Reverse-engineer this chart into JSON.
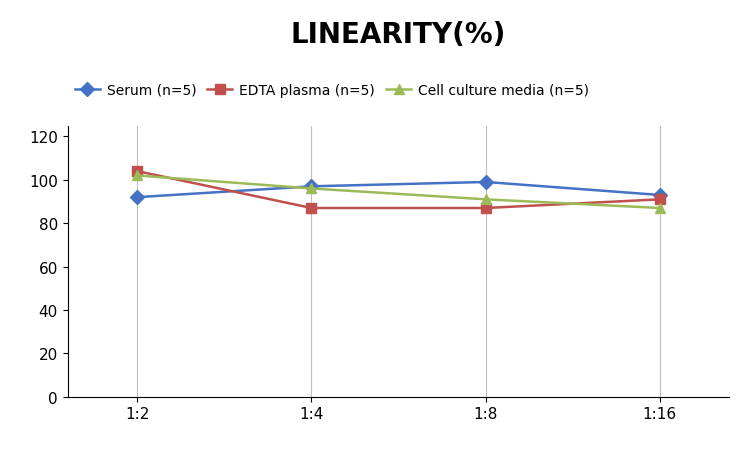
{
  "title": "LINEARITY(%)",
  "x_labels": [
    "1:2",
    "1:4",
    "1:8",
    "1:16"
  ],
  "series": [
    {
      "label": "Serum (n=5)",
      "values": [
        92,
        97,
        99,
        93
      ],
      "color": "#4472C4",
      "marker": "D",
      "marker_face": "#4472C4"
    },
    {
      "label": "EDTA plasma (n=5)",
      "values": [
        104,
        87,
        87,
        91
      ],
      "color": "#C0504D",
      "marker": "s",
      "marker_face": "#C0504D"
    },
    {
      "label": "Cell culture media (n=5)",
      "values": [
        102,
        96,
        91,
        87
      ],
      "color": "#9BBB59",
      "marker": "^",
      "marker_face": "#9BBB59"
    }
  ],
  "ylim": [
    0,
    125
  ],
  "yticks": [
    0,
    20,
    40,
    60,
    80,
    100,
    120
  ],
  "background_color": "#FFFFFF",
  "title_fontsize": 20,
  "legend_fontsize": 10,
  "tick_fontsize": 11,
  "grid_color": "#BFBFBF",
  "linewidth": 1.8,
  "markersize": 7
}
